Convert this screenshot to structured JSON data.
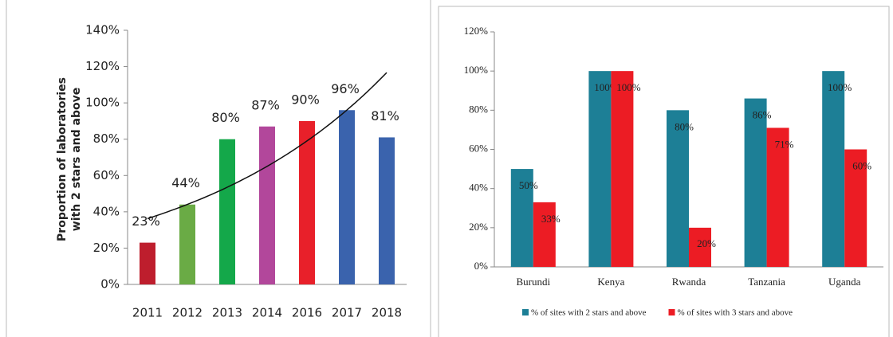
{
  "chart_data": [
    {
      "type": "bar",
      "ylabel": [
        "Proportion  of laboratories",
        "with 2 stars and above"
      ],
      "categories": [
        "2011",
        "2012",
        "2013",
        "2014",
        "2016",
        "2017",
        "2018"
      ],
      "values": [
        23,
        44,
        80,
        87,
        90,
        96,
        81
      ],
      "value_labels": [
        "23%",
        "44%",
        "80%",
        "87%",
        "90%",
        "96%",
        "81%"
      ],
      "colors": [
        "#be1e2d",
        "#6aab45",
        "#14a84a",
        "#b2479b",
        "#e8202a",
        "#3a63ad",
        "#3a63ad"
      ],
      "trendline": "exponential",
      "ylim": [
        0,
        140
      ],
      "yticks": [
        {
          "value": 0,
          "label": "0%"
        },
        {
          "value": 20,
          "label": "20%"
        },
        {
          "value": 40,
          "label": "40%"
        },
        {
          "value": 60,
          "label": "60%"
        },
        {
          "value": 80,
          "label": "80%"
        },
        {
          "value": 100,
          "label": "100%"
        },
        {
          "value": 120,
          "label": "120%"
        },
        {
          "value": 140,
          "label": "140%"
        }
      ]
    },
    {
      "type": "grouped_bar",
      "categories": [
        "Burundi",
        "Kenya",
        "Rwanda",
        "Tanzania",
        "Uganda"
      ],
      "series": [
        {
          "name": "% of sites with 2 stars and above",
          "color": "#1d7f96",
          "values": [
            50,
            100,
            80,
            86,
            100
          ],
          "value_labels": [
            "50%",
            "100%",
            "80%",
            "86%",
            "100%"
          ]
        },
        {
          "name": "% of sites with 3 stars and above",
          "color": "#ec1c24",
          "values": [
            33,
            100,
            20,
            71,
            60
          ],
          "value_labels": [
            "33%",
            "100%",
            "20%",
            "71%",
            "60%"
          ]
        }
      ],
      "ylim": [
        0,
        120
      ],
      "yticks": [
        {
          "value": 0,
          "label": "0%"
        },
        {
          "value": 20,
          "label": "20%"
        },
        {
          "value": 40,
          "label": "40%"
        },
        {
          "value": 60,
          "label": "60%"
        },
        {
          "value": 80,
          "label": "80%"
        },
        {
          "value": 100,
          "label": "100%"
        },
        {
          "value": 120,
          "label": "120%"
        }
      ],
      "legend": "bottom"
    }
  ]
}
